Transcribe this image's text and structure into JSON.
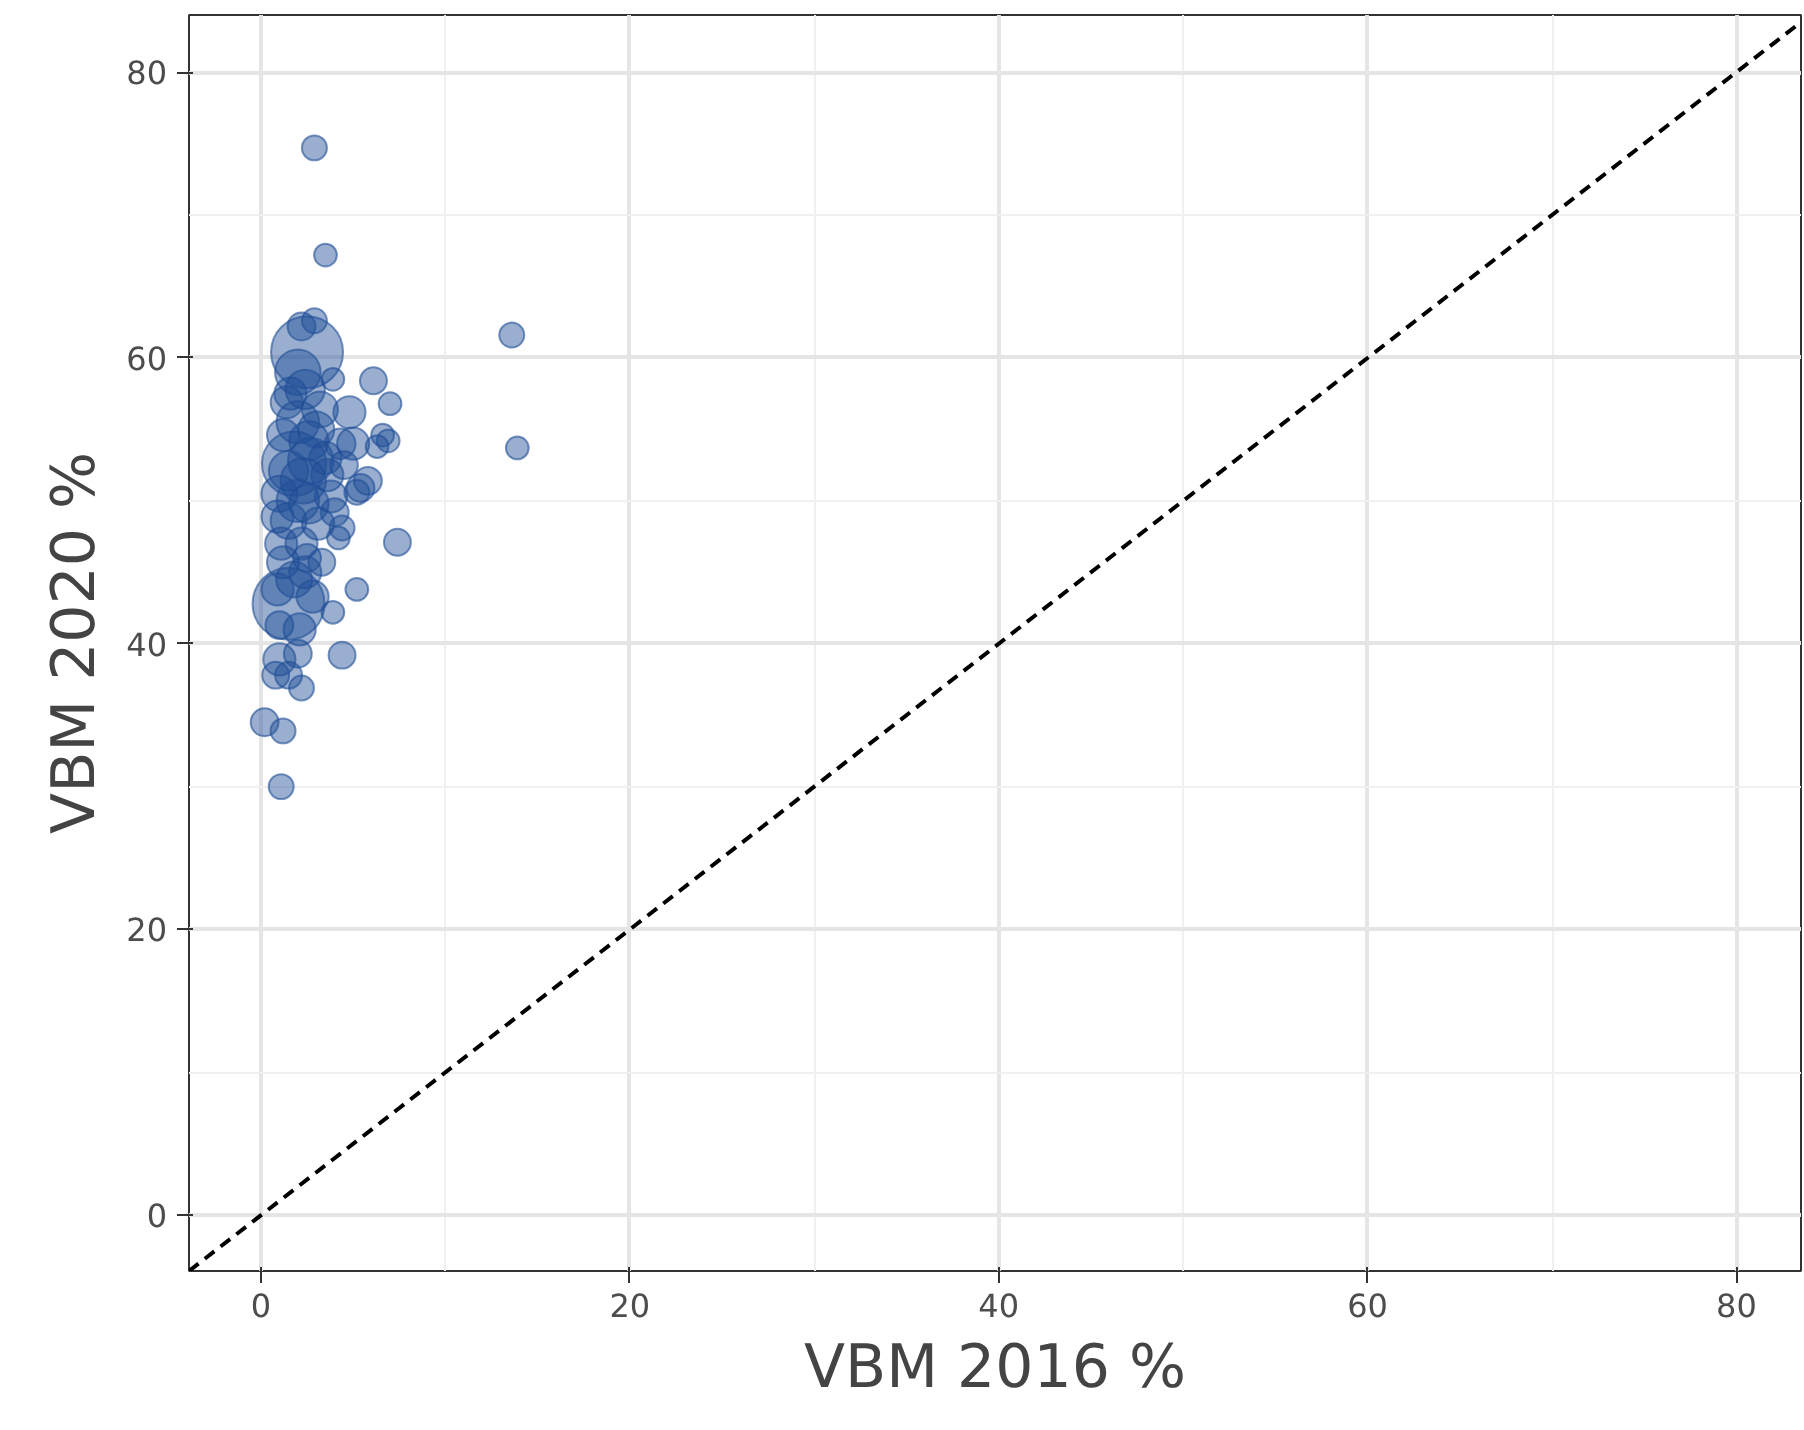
{
  "chart_data": {
    "type": "bubble",
    "xlabel": "VBM 2016 %",
    "ylabel": "VBM 2020 %",
    "xlim": [
      -3.9,
      83.5
    ],
    "ylim": [
      -3.9,
      84
    ],
    "xticks": [
      0,
      20,
      40,
      60,
      80
    ],
    "yticks": [
      0,
      20,
      40,
      60,
      80
    ],
    "grid": true,
    "series": [
      {
        "color": "#1f4e96",
        "x": [
          2.9,
          3.5,
          13.6,
          13.9,
          2.5,
          1.5,
          1.8,
          2.0,
          2.2,
          2.9,
          2.4,
          6.1,
          3.9,
          7.0,
          4.8,
          3.2,
          1.4,
          2.0,
          6.6,
          6.9,
          5.0,
          4.3,
          6.3,
          1.2,
          2.6,
          3.5,
          1.5,
          2.3,
          5.8,
          5.4,
          5.2,
          1.0,
          3.8,
          2.6,
          0.9,
          4.0,
          1.5,
          4.4,
          3.1,
          7.4,
          4.2,
          2.2,
          1.1,
          2.5,
          3.3,
          1.2,
          5.2,
          2.8,
          3.9,
          2.1,
          1.0,
          2.0,
          4.4,
          1.0,
          1.5,
          0.8,
          2.2,
          0.2,
          1.2,
          1.1,
          1.8,
          2.7,
          2.0,
          3.0,
          1.6,
          3.6,
          4.5,
          2.4,
          0.9
        ],
        "values": [
          74.7,
          67.2,
          61.6,
          53.7,
          60.4,
          42.8,
          52.6,
          59.0,
          62.2,
          62.6,
          57.8,
          58.4,
          58.5,
          56.8,
          56.2,
          56.4,
          56.9,
          55.5,
          54.6,
          54.2,
          54.0,
          54.0,
          53.8,
          54.6,
          54.2,
          53.0,
          52.1,
          51.4,
          51.4,
          50.9,
          50.6,
          50.5,
          50.3,
          49.8,
          48.9,
          49.2,
          48.6,
          48.1,
          48.4,
          47.1,
          47.4,
          47.0,
          47.0,
          46.0,
          45.7,
          45.7,
          43.8,
          43.3,
          42.2,
          41.0,
          41.3,
          39.3,
          39.2,
          38.9,
          37.8,
          37.8,
          36.9,
          34.5,
          33.9,
          30.0,
          44.5,
          52.8,
          50.0,
          55.0,
          57.5,
          51.8,
          52.5,
          45.0,
          43.8
        ],
        "sizes": [
          0.12,
          0.1,
          0.12,
          0.1,
          1,
          1,
          0.8,
          0.4,
          0.15,
          0.12,
          0.3,
          0.14,
          0.1,
          0.1,
          0.2,
          0.25,
          0.2,
          0.35,
          0.1,
          0.1,
          0.2,
          0.18,
          0.1,
          0.2,
          0.3,
          0.2,
          0.3,
          0.4,
          0.15,
          0.15,
          0.12,
          0.25,
          0.2,
          0.3,
          0.2,
          0.15,
          0.25,
          0.12,
          0.2,
          0.14,
          0.1,
          0.2,
          0.2,
          0.15,
          0.14,
          0.2,
          0.1,
          0.2,
          0.1,
          0.2,
          0.15,
          0.15,
          0.14,
          0.2,
          0.14,
          0.14,
          0.12,
          0.15,
          0.12,
          0.12,
          0.25,
          0.4,
          0.35,
          0.25,
          0.2,
          0.2,
          0.15,
          0.2,
          0.2
        ]
      },
      {
        "type": "line",
        "color": "#000000",
        "line_style": "dashed",
        "x": [
          -3.9,
          83.5
        ],
        "values": [
          -3.9,
          83.5
        ]
      }
    ]
  }
}
